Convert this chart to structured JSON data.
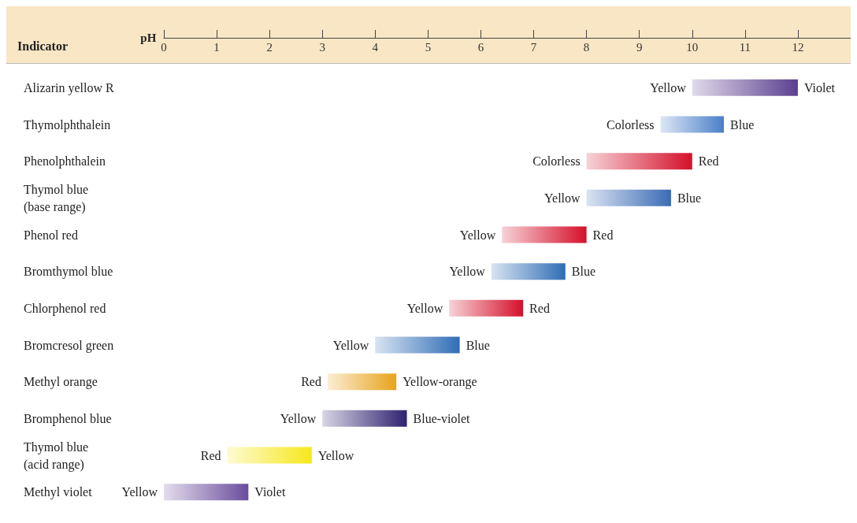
{
  "chart_data": {
    "type": "bar",
    "orientation": "horizontal",
    "xlabel": "pH",
    "ylabel": "Indicator",
    "categories": [
      "Alizarin yellow R",
      "Thymolphthalein",
      "Phenolphthalein",
      "Thymol blue\n(base range)",
      "Phenol red",
      "Bromthymol blue",
      "Chlorphenol red",
      "Bromcresol green",
      "Methyl orange",
      "Bromphenol blue",
      "Thymol blue\n(acid range)",
      "Methyl violet"
    ],
    "base": [
      10,
      9.4,
      8,
      8,
      6.4,
      6.2,
      5.4,
      4,
      3.1,
      3,
      1.2,
      0
    ],
    "values": [
      2,
      1.2,
      2,
      1.6,
      1.6,
      1.4,
      1.4,
      1.6,
      1.3,
      1.6,
      1.6,
      1.6
    ],
    "colors": [
      "#5b3f8f",
      "#4a7fc8",
      "#d4102a",
      "#3a6bb5",
      "#d4102a",
      "#2f6db6",
      "#d4102a",
      "#2f6db6",
      "#e8a31a",
      "#2f2170",
      "#f6e81a",
      "#6a4c9c"
    ],
    "xlim": [
      0,
      13
    ],
    "xticks": [
      0,
      1,
      2,
      3,
      4,
      5,
      6,
      7,
      8,
      9,
      10,
      11,
      12
    ],
    "grid": false,
    "annotations": [
      {
        "text": "Yellow",
        "x": 10,
        "y": "Alizarin yellow R"
      },
      {
        "text": "Violet",
        "x": 12,
        "y": "Alizarin yellow R"
      },
      {
        "text": "Colorless",
        "x": 9.4,
        "y": "Thymolphthalein"
      },
      {
        "text": "Blue",
        "x": 10.6,
        "y": "Thymolphthalein"
      },
      {
        "text": "Colorless",
        "x": 8,
        "y": "Phenolphthalein"
      },
      {
        "text": "Red",
        "x": 10,
        "y": "Phenolphthalein"
      },
      {
        "text": "Yellow",
        "x": 8,
        "y": "Thymol blue\n(base range)"
      },
      {
        "text": "Blue",
        "x": 9.6,
        "y": "Thymol blue\n(base range)"
      },
      {
        "text": "Yellow",
        "x": 6.4,
        "y": "Phenol red"
      },
      {
        "text": "Red",
        "x": 8,
        "y": "Phenol red"
      },
      {
        "text": "Yellow",
        "x": 6.2,
        "y": "Bromthymol blue"
      },
      {
        "text": "Blue",
        "x": 7.6,
        "y": "Bromthymol blue"
      },
      {
        "text": "Yellow",
        "x": 5.4,
        "y": "Chlorphenol red"
      },
      {
        "text": "Red",
        "x": 6.8,
        "y": "Chlorphenol red"
      },
      {
        "text": "Yellow",
        "x": 4,
        "y": "Bromcresol green"
      },
      {
        "text": "Blue",
        "x": 5.6,
        "y": "Bromcresol green"
      },
      {
        "text": "Red",
        "x": 3.1,
        "y": "Methyl orange"
      },
      {
        "text": "Yellow-orange",
        "x": 4.4,
        "y": "Methyl orange"
      },
      {
        "text": "Yellow",
        "x": 3,
        "y": "Bromphenol blue"
      },
      {
        "text": "Blue-violet",
        "x": 4.6,
        "y": "Bromphenol blue"
      },
      {
        "text": "Red",
        "x": 1.2,
        "y": "Thymol blue\n(acid range)"
      },
      {
        "text": "Yellow",
        "x": 2.8,
        "y": "Thymol blue\n(acid range)"
      },
      {
        "text": "Yellow",
        "x": 0,
        "y": "Methyl violet"
      },
      {
        "text": "Violet",
        "x": 1.6,
        "y": "Methyl violet"
      }
    ]
  }
}
